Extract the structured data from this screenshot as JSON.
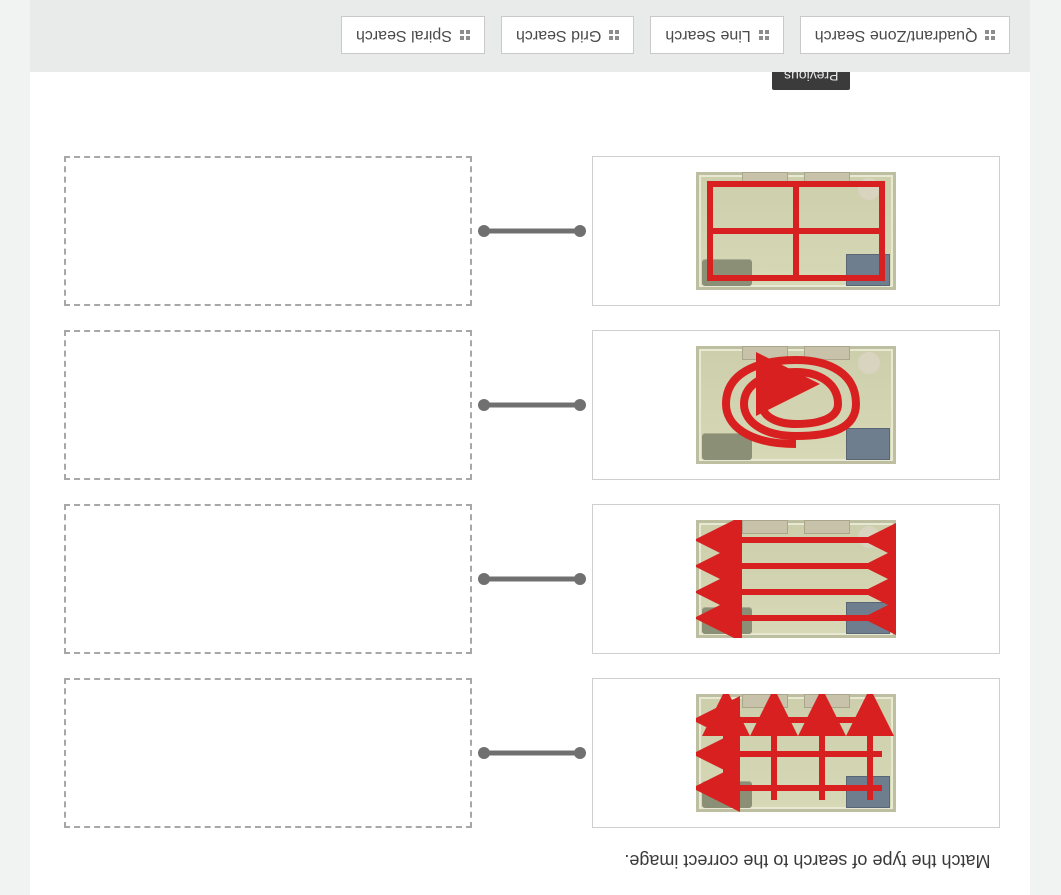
{
  "instruction": "Match the type of search to the correct image.",
  "tooltip": "Previous",
  "room": {
    "bg_top": "#d7d9b6",
    "bg_bottom": "#ccceac",
    "border": "#bdbfa0",
    "pattern_color": "#d92020",
    "pattern_stroke_width": 6
  },
  "connector": {
    "color": "#707070",
    "dot_radius": 6,
    "line_width": 5
  },
  "dropzone": {
    "border_color": "#a7a7a7"
  },
  "patterns": [
    {
      "id": "grid",
      "type": "grid",
      "arrows": true
    },
    {
      "id": "line",
      "type": "line",
      "arrows": true
    },
    {
      "id": "spiral",
      "type": "spiral",
      "arrows": true
    },
    {
      "id": "zone",
      "type": "zone",
      "arrows": false
    }
  ],
  "draggables": [
    {
      "id": "quadrant",
      "label": "Quadrant/Zone Search"
    },
    {
      "id": "line",
      "label": "Line Search"
    },
    {
      "id": "grid",
      "label": "Grid Search"
    },
    {
      "id": "spiral",
      "label": "Spiral Search"
    }
  ]
}
